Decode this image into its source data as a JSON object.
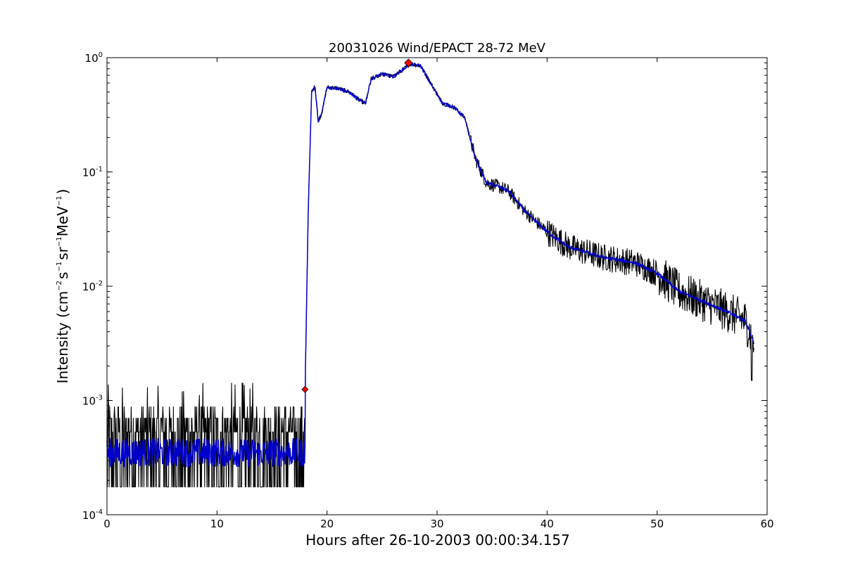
{
  "chart_data": {
    "type": "line",
    "title": "20031026 Wind/EPACT 28-72 MeV",
    "xlabel": "Hours after 26-10-2003 00:00:34.157",
    "ylabel_parts": [
      "Intensity (cm",
      "−2",
      "s",
      "−1",
      "sr",
      "−1",
      "MeV",
      "−1",
      ")"
    ],
    "xlim": [
      0,
      60
    ],
    "ylim": [
      0.0001,
      1
    ],
    "yscale": "log",
    "grid": false,
    "x_ticks": [
      0,
      10,
      20,
      30,
      40,
      50,
      60
    ],
    "x_tick_labels": [
      "0",
      "10",
      "20",
      "30",
      "40",
      "50",
      "60"
    ],
    "y_ticks": [
      {
        "value": 1,
        "base": "10",
        "exp": "0"
      },
      {
        "value": 0.1,
        "base": "10",
        "exp": "-1"
      },
      {
        "value": 0.01,
        "base": "10",
        "exp": "-2"
      },
      {
        "value": 0.001,
        "base": "10",
        "exp": "-3"
      },
      {
        "value": 0.0001,
        "base": "10",
        "exp": "-4"
      }
    ],
    "series": [
      {
        "role": "raw",
        "color": "#000000",
        "profile": [
          [
            0.0,
            0.00035
          ],
          [
            17.9,
            0.00035
          ],
          [
            18.0,
            0.0012
          ],
          [
            18.3,
            0.05
          ],
          [
            18.6,
            0.5
          ],
          [
            18.9,
            0.56
          ],
          [
            19.2,
            0.28
          ],
          [
            19.5,
            0.32
          ],
          [
            20.0,
            0.55
          ],
          [
            21.0,
            0.54
          ],
          [
            22.0,
            0.5
          ],
          [
            23.0,
            0.42
          ],
          [
            23.5,
            0.4
          ],
          [
            24.0,
            0.65
          ],
          [
            25.0,
            0.72
          ],
          [
            26.0,
            0.68
          ],
          [
            27.0,
            0.8
          ],
          [
            27.5,
            0.88
          ],
          [
            28.5,
            0.85
          ],
          [
            29.5,
            0.58
          ],
          [
            30.5,
            0.4
          ],
          [
            31.5,
            0.37
          ],
          [
            32.5,
            0.3
          ],
          [
            33.5,
            0.13
          ],
          [
            34.5,
            0.08
          ],
          [
            35.5,
            0.075
          ],
          [
            36.5,
            0.068
          ],
          [
            38.0,
            0.045
          ],
          [
            40.0,
            0.03
          ],
          [
            42.0,
            0.022
          ],
          [
            45.0,
            0.018
          ],
          [
            48.0,
            0.016
          ],
          [
            50.0,
            0.013
          ],
          [
            52.0,
            0.009
          ],
          [
            54.0,
            0.0075
          ],
          [
            56.0,
            0.0062
          ],
          [
            58.0,
            0.005
          ],
          [
            58.8,
            0.0032
          ]
        ]
      },
      {
        "role": "smoothed",
        "color": "#0000cc",
        "profile": [
          [
            0.0,
            0.00035
          ],
          [
            17.9,
            0.00035
          ],
          [
            18.0,
            0.0012
          ],
          [
            18.3,
            0.05
          ],
          [
            18.6,
            0.5
          ],
          [
            18.9,
            0.56
          ],
          [
            19.2,
            0.28
          ],
          [
            19.5,
            0.32
          ],
          [
            20.0,
            0.55
          ],
          [
            21.0,
            0.54
          ],
          [
            22.0,
            0.5
          ],
          [
            23.0,
            0.42
          ],
          [
            23.5,
            0.4
          ],
          [
            24.0,
            0.65
          ],
          [
            25.0,
            0.72
          ],
          [
            26.0,
            0.68
          ],
          [
            27.0,
            0.8
          ],
          [
            27.5,
            0.88
          ],
          [
            28.5,
            0.85
          ],
          [
            29.5,
            0.58
          ],
          [
            30.5,
            0.4
          ],
          [
            31.5,
            0.37
          ],
          [
            32.5,
            0.3
          ],
          [
            33.5,
            0.13
          ],
          [
            34.5,
            0.08
          ],
          [
            35.5,
            0.075
          ],
          [
            36.5,
            0.068
          ],
          [
            38.0,
            0.045
          ],
          [
            40.0,
            0.03
          ],
          [
            42.0,
            0.022
          ],
          [
            45.0,
            0.018
          ],
          [
            48.0,
            0.016
          ],
          [
            50.0,
            0.013
          ],
          [
            52.0,
            0.009
          ],
          [
            54.0,
            0.0075
          ],
          [
            56.0,
            0.0062
          ],
          [
            58.0,
            0.005
          ],
          [
            58.8,
            0.0032
          ]
        ]
      }
    ],
    "markers": [
      {
        "role": "onset",
        "x": 18.0,
        "y": 0.00125,
        "color": "#ff0000"
      },
      {
        "role": "peak",
        "x": 27.4,
        "y": 0.9,
        "color": "#ff0000"
      }
    ]
  }
}
